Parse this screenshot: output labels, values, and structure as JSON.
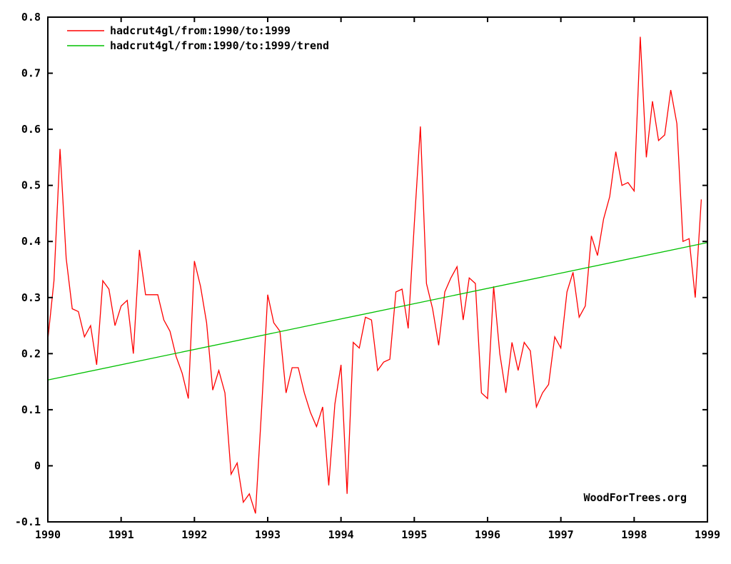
{
  "chart_data": {
    "type": "line",
    "title": "",
    "xlabel": "",
    "ylabel": "",
    "xlim": [
      1990,
      1999
    ],
    "ylim": [
      -0.1,
      0.8
    ],
    "x_ticks": [
      "1990",
      "1991",
      "1992",
      "1993",
      "1994",
      "1995",
      "1996",
      "1997",
      "1998",
      "1999"
    ],
    "y_ticks": [
      "-0.1",
      "0",
      "0.1",
      "0.2",
      "0.3",
      "0.4",
      "0.5",
      "0.6",
      "0.7",
      "0.8"
    ],
    "grid": false,
    "legend_position": "top-left",
    "watermark": "WoodForTrees.org",
    "series": [
      {
        "name": "hadcrut4gl/from:1990/to:1999",
        "color": "#ff0000",
        "start": 1990.0,
        "step": 0.08333,
        "values": [
          0.225,
          0.33,
          0.565,
          0.37,
          0.28,
          0.275,
          0.23,
          0.25,
          0.18,
          0.33,
          0.315,
          0.25,
          0.285,
          0.295,
          0.2,
          0.385,
          0.305,
          0.305,
          0.305,
          0.26,
          0.24,
          0.195,
          0.165,
          0.12,
          0.365,
          0.32,
          0.255,
          0.135,
          0.17,
          0.13,
          -0.015,
          0.005,
          -0.065,
          -0.05,
          -0.085,
          0.1,
          0.305,
          0.255,
          0.24,
          0.13,
          0.175,
          0.175,
          0.13,
          0.095,
          0.07,
          0.105,
          -0.035,
          0.11,
          0.18,
          -0.05,
          0.22,
          0.21,
          0.265,
          0.26,
          0.17,
          0.185,
          0.19,
          0.31,
          0.315,
          0.245,
          0.43,
          0.605,
          0.325,
          0.28,
          0.215,
          0.31,
          0.335,
          0.355,
          0.26,
          0.335,
          0.325,
          0.13,
          0.12,
          0.32,
          0.2,
          0.13,
          0.22,
          0.17,
          0.22,
          0.205,
          0.105,
          0.13,
          0.145,
          0.23,
          0.21,
          0.31,
          0.345,
          0.265,
          0.285,
          0.41,
          0.375,
          0.44,
          0.48,
          0.56,
          0.5,
          0.505,
          0.49,
          0.765,
          0.55,
          0.65,
          0.58,
          0.59,
          0.67,
          0.61,
          0.4,
          0.405,
          0.3,
          0.475
        ]
      },
      {
        "name": "hadcrut4gl/from:1990/to:1999/trend",
        "color": "#00c000",
        "x": [
          1990,
          1999
        ],
        "values": [
          0.153,
          0.398
        ]
      }
    ]
  }
}
